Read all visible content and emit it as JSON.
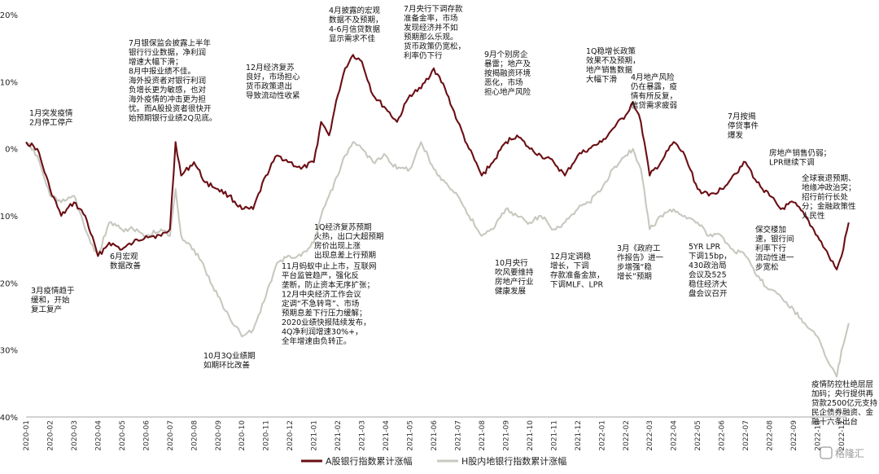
{
  "chart_data": {
    "type": "line",
    "title": "",
    "xlabel": "",
    "ylabel": "",
    "ylim": [
      -40,
      20
    ],
    "y_ticks": [
      "20%",
      "10%",
      "0%",
      "-10%",
      "-20%",
      "-30%",
      "-40%"
    ],
    "y_tick_values": [
      20,
      10,
      0,
      -10,
      -20,
      -30,
      -40
    ],
    "x_ticks": [
      "2020-01",
      "2020-02",
      "2020-03",
      "2020-04",
      "2020-05",
      "2020-06",
      "2020-07",
      "2020-08",
      "2020-09",
      "2020-10",
      "2020-11",
      "2020-12",
      "2021-01",
      "2021-02",
      "2021-03",
      "2021-04",
      "2021-05",
      "2021-06",
      "2021-07",
      "2021-08",
      "2021-09",
      "2021-10",
      "2021-11",
      "2021-12",
      "2022-01",
      "2022-02",
      "2022-03",
      "2022-04",
      "2022-05",
      "2022-06",
      "2022-07",
      "2022-08",
      "2022-09",
      "2022-10",
      "2022-11"
    ],
    "grid": false,
    "legend_position": "bottom",
    "series": [
      {
        "name": "A股银行指数累计涨幅",
        "color": "#6b0f14",
        "points": [
          [
            "2020-01",
            1
          ],
          [
            "2020-01-15",
            0
          ],
          [
            "2020-02",
            -6
          ],
          [
            "2020-02-15",
            -10
          ],
          [
            "2020-03",
            -8
          ],
          [
            "2020-03-15",
            -10
          ],
          [
            "2020-04",
            -16
          ],
          [
            "2020-04-15",
            -14
          ],
          [
            "2020-05",
            -15
          ],
          [
            "2020-05-15",
            -14
          ],
          [
            "2020-06",
            -13
          ],
          [
            "2020-06-20",
            -13
          ],
          [
            "2020-07",
            -12
          ],
          [
            "2020-07-08",
            1
          ],
          [
            "2020-07-15",
            -4
          ],
          [
            "2020-08",
            -2
          ],
          [
            "2020-08-15",
            -5
          ],
          [
            "2020-09",
            -6
          ],
          [
            "2020-09-15",
            -7
          ],
          [
            "2020-10",
            -9
          ],
          [
            "2020-10-15",
            -9
          ],
          [
            "2020-11",
            -4
          ],
          [
            "2020-11-15",
            -1
          ],
          [
            "2020-12",
            -2
          ],
          [
            "2020-12-15",
            -3
          ],
          [
            "2021-01",
            -2
          ],
          [
            "2021-01-10",
            4
          ],
          [
            "2021-01-20",
            2
          ],
          [
            "2021-02",
            8
          ],
          [
            "2021-02-10",
            12
          ],
          [
            "2021-02-20",
            14
          ],
          [
            "2021-03",
            13
          ],
          [
            "2021-03-15",
            8
          ],
          [
            "2021-04",
            6
          ],
          [
            "2021-04-15",
            4
          ],
          [
            "2021-05",
            8
          ],
          [
            "2021-05-15",
            9
          ],
          [
            "2021-06",
            12
          ],
          [
            "2021-06-15",
            9
          ],
          [
            "2021-07",
            4
          ],
          [
            "2021-07-15",
            0
          ],
          [
            "2021-08",
            -4
          ],
          [
            "2021-08-15",
            -2
          ],
          [
            "2021-09",
            1
          ],
          [
            "2021-09-15",
            2
          ],
          [
            "2021-10",
            0
          ],
          [
            "2021-10-15",
            -1
          ],
          [
            "2021-11",
            -2
          ],
          [
            "2021-11-15",
            -4
          ],
          [
            "2021-12",
            -1
          ],
          [
            "2021-12-15",
            0
          ],
          [
            "2022-01",
            1
          ],
          [
            "2022-01-15",
            3
          ],
          [
            "2022-02",
            5
          ],
          [
            "2022-02-10",
            7
          ],
          [
            "2022-02-20",
            4
          ],
          [
            "2022-03",
            -4
          ],
          [
            "2022-03-15",
            -2
          ],
          [
            "2022-04",
            1
          ],
          [
            "2022-04-15",
            -1
          ],
          [
            "2022-05",
            -6
          ],
          [
            "2022-05-15",
            -7
          ],
          [
            "2022-06",
            -6
          ],
          [
            "2022-06-15",
            -4
          ],
          [
            "2022-07",
            -2
          ],
          [
            "2022-07-15",
            -5
          ],
          [
            "2022-08",
            -7
          ],
          [
            "2022-08-15",
            -9
          ],
          [
            "2022-09",
            -8
          ],
          [
            "2022-09-15",
            -10
          ],
          [
            "2022-10",
            -13
          ],
          [
            "2022-10-15",
            -16
          ],
          [
            "2022-10-25",
            -18
          ],
          [
            "2022-11",
            -16
          ],
          [
            "2022-11-10",
            -11
          ]
        ]
      },
      {
        "name": "H股内地银行指数累计涨幅",
        "color": "#c8c8c0",
        "points": [
          [
            "2020-01",
            1
          ],
          [
            "2020-01-15",
            -1
          ],
          [
            "2020-02",
            -7
          ],
          [
            "2020-02-15",
            -8
          ],
          [
            "2020-03",
            -7
          ],
          [
            "2020-03-15",
            -12
          ],
          [
            "2020-04",
            -16
          ],
          [
            "2020-04-15",
            -11
          ],
          [
            "2020-05",
            -12
          ],
          [
            "2020-05-15",
            -12
          ],
          [
            "2020-06",
            -13
          ],
          [
            "2020-06-20",
            -12
          ],
          [
            "2020-07",
            -13
          ],
          [
            "2020-07-08",
            -6
          ],
          [
            "2020-07-15",
            -13
          ],
          [
            "2020-08",
            -15
          ],
          [
            "2020-08-15",
            -18
          ],
          [
            "2020-09",
            -22
          ],
          [
            "2020-09-15",
            -25
          ],
          [
            "2020-10",
            -28
          ],
          [
            "2020-10-15",
            -27
          ],
          [
            "2020-11",
            -22
          ],
          [
            "2020-11-15",
            -17
          ],
          [
            "2020-12",
            -16
          ],
          [
            "2020-12-15",
            -16
          ],
          [
            "2021-01",
            -14
          ],
          [
            "2021-01-10",
            -10
          ],
          [
            "2021-01-20",
            -7
          ],
          [
            "2021-02",
            -4
          ],
          [
            "2021-02-10",
            -1
          ],
          [
            "2021-02-20",
            1
          ],
          [
            "2021-03",
            0
          ],
          [
            "2021-03-15",
            -2
          ],
          [
            "2021-04",
            -1
          ],
          [
            "2021-04-15",
            -3
          ],
          [
            "2021-05",
            -3
          ],
          [
            "2021-05-15",
            1
          ],
          [
            "2021-06",
            -3
          ],
          [
            "2021-06-15",
            -5
          ],
          [
            "2021-07",
            -7
          ],
          [
            "2021-07-15",
            -10
          ],
          [
            "2021-08",
            -13
          ],
          [
            "2021-08-15",
            -12
          ],
          [
            "2021-09",
            -9
          ],
          [
            "2021-09-15",
            -10
          ],
          [
            "2021-10",
            -11
          ],
          [
            "2021-10-15",
            -10
          ],
          [
            "2021-11",
            -12
          ],
          [
            "2021-11-15",
            -11
          ],
          [
            "2021-12",
            -9
          ],
          [
            "2021-12-15",
            -8
          ],
          [
            "2022-01",
            -6
          ],
          [
            "2022-01-15",
            -3
          ],
          [
            "2022-02",
            -1
          ],
          [
            "2022-02-10",
            0
          ],
          [
            "2022-02-20",
            -3
          ],
          [
            "2022-03",
            -12
          ],
          [
            "2022-03-15",
            -10
          ],
          [
            "2022-04",
            -9
          ],
          [
            "2022-04-15",
            -10
          ],
          [
            "2022-05",
            -11
          ],
          [
            "2022-05-15",
            -13
          ],
          [
            "2022-06",
            -13
          ],
          [
            "2022-06-15",
            -15
          ],
          [
            "2022-07",
            -16
          ],
          [
            "2022-07-15",
            -19
          ],
          [
            "2022-08",
            -21
          ],
          [
            "2022-08-15",
            -22
          ],
          [
            "2022-09",
            -24
          ],
          [
            "2022-09-15",
            -26
          ],
          [
            "2022-10",
            -28
          ],
          [
            "2022-10-15",
            -32
          ],
          [
            "2022-10-25",
            -34
          ],
          [
            "2022-11",
            -30
          ],
          [
            "2022-11-10",
            -26
          ]
        ]
      }
    ],
    "annotations": [
      {
        "id": "a1",
        "lines": [
          "1月突发疫情",
          "2月停工停产"
        ]
      },
      {
        "id": "a2",
        "lines": [
          "3月疫情趋于",
          "缓和，开始",
          "复工复产"
        ]
      },
      {
        "id": "a3",
        "lines": [
          "6月宏观",
          "数据改善"
        ]
      },
      {
        "id": "a4",
        "lines": [
          "7月银保监会披露上半年",
          "银行行业数据，净利润",
          "增速大幅下滑；",
          "8月中报业绩不佳。",
          "海外投资者对银行利润",
          "负增长更为敏感，也对",
          "海外疫情的冲击更为担",
          "忧。而A股投资者很快开",
          "始预期银行业绩2Q见底。"
        ]
      },
      {
        "id": "a5",
        "lines": [
          "10月3Q业绩期",
          "如期环比改善"
        ]
      },
      {
        "id": "a6",
        "lines": [
          "12月经济复苏",
          "良好，市场担心",
          "货币政策退出",
          "导致流动性收紧"
        ]
      },
      {
        "id": "a7",
        "lines": [
          "11月蚂蚁中止上市，互联网",
          "平台监管趋严，强化反",
          "垄断，防止资本无序扩张；",
          "12月中央经济工作会议",
          "定调“不急转弯”、市场",
          "预期息差下行压力缓解；",
          "2020业绩快报陆续发布，",
          "4Q净利润增速30%+，",
          "全年增速由负转正。"
        ]
      },
      {
        "id": "a8",
        "lines": [
          "1Q经济复苏预期",
          "火热，出口大超预期",
          "房价出现上涨",
          "出现息差上行预期"
        ]
      },
      {
        "id": "a9",
        "lines": [
          "4月披露的宏观",
          "数据不及预期，",
          "4-6月信贷数据",
          "显示需求不佳"
        ]
      },
      {
        "id": "a10",
        "lines": [
          "7月央行下调存款",
          "准备金率，市场",
          "发现经济并不如",
          "预期那么乐观。",
          "货币政策仍宽松，",
          "利率仍下行"
        ]
      },
      {
        "id": "a11",
        "lines": [
          "9月个别房企",
          "暴雷；地产及",
          "按揭融资环境",
          "恶化，市场",
          "担心地产风险"
        ]
      },
      {
        "id": "a12",
        "lines": [
          "10月央行",
          "吹风要维持",
          "房地产行业",
          "健康发展"
        ]
      },
      {
        "id": "a13",
        "lines": [
          "12月定调稳",
          "增长，下调",
          "存款准备金旅，",
          "下调MLF、LPR"
        ]
      },
      {
        "id": "a14",
        "lines": [
          "1Q稳增长政策",
          "效果不及预期，",
          "地产销售数据",
          "大幅下滑"
        ]
      },
      {
        "id": "a15",
        "lines": [
          "3月《政府工",
          "作报告》进一",
          "步增强“稳",
          "增长”预期"
        ]
      },
      {
        "id": "a16",
        "lines": [
          "4月地产风险",
          "仍在暴露，疫",
          "情有所反复，",
          "信贷需求疲弱"
        ]
      },
      {
        "id": "a17",
        "lines": [
          "5YR LPR",
          "下调15bp，",
          "430政治局",
          "会议及525",
          "稳住经济大",
          "盘会议召开"
        ]
      },
      {
        "id": "a18",
        "lines": [
          "7月按揭",
          "停贷事件",
          "爆发"
        ]
      },
      {
        "id": "a19",
        "lines": [
          "房地产销售仍弱；",
          "LPR继续下调"
        ]
      },
      {
        "id": "a20",
        "lines": [
          "保交楼加",
          "速，银行间",
          "利率下行",
          "流动性进一",
          "步宽松"
        ]
      },
      {
        "id": "a21",
        "lines": [
          "全球衰退预期、",
          "地缘冲政治突；",
          "招行前行长处",
          "分；金融政策性",
          "人民性"
        ]
      },
      {
        "id": "a22",
        "lines": [
          "疫情防控杜绝层层",
          "加码；央行提供再",
          "贷款2500亿元支持",
          "民企债券融资、金",
          "融十六条出台"
        ]
      }
    ]
  },
  "watermark": "格隆汇"
}
